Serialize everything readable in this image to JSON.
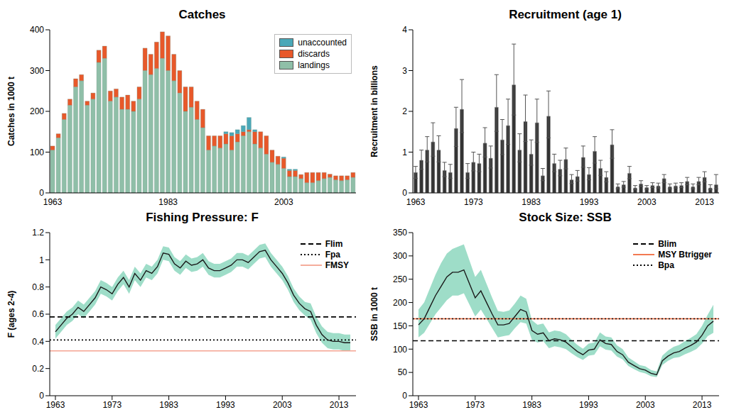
{
  "chart_data": [
    {
      "type": "bar",
      "title": "Catches",
      "stacked": true,
      "legend": "upper right",
      "ylabel": "Catches in 1000 t",
      "categories": [
        "1963",
        null,
        null,
        null,
        null,
        null,
        null,
        null,
        null,
        null,
        null,
        null,
        null,
        null,
        null,
        null,
        null,
        null,
        null,
        null,
        "1983",
        null,
        null,
        null,
        null,
        null,
        null,
        null,
        null,
        null,
        null,
        null,
        null,
        null,
        null,
        null,
        null,
        null,
        null,
        null,
        "2003",
        null,
        null,
        null,
        null,
        null,
        null,
        null,
        null,
        null,
        null,
        null,
        null
      ],
      "series": [
        {
          "name": "landings",
          "color": "#8fbfa8",
          "values": [
            105,
            135,
            180,
            215,
            260,
            275,
            215,
            230,
            320,
            330,
            225,
            235,
            205,
            205,
            200,
            230,
            300,
            290,
            305,
            330,
            300,
            275,
            245,
            200,
            210,
            180,
            160,
            105,
            115,
            110,
            120,
            105,
            125,
            140,
            150,
            120,
            110,
            95,
            75,
            70,
            60,
            40,
            40,
            35,
            25,
            25,
            30,
            35,
            38,
            32,
            30,
            32,
            38
          ]
        },
        {
          "name": "discards",
          "color": "#e8582a",
          "values": [
            10,
            10,
            15,
            15,
            20,
            15,
            10,
            15,
            30,
            30,
            25,
            20,
            30,
            35,
            25,
            30,
            55,
            50,
            65,
            65,
            85,
            65,
            55,
            60,
            50,
            45,
            45,
            35,
            25,
            30,
            25,
            35,
            20,
            10,
            5,
            30,
            40,
            45,
            30,
            20,
            25,
            15,
            15,
            10,
            25,
            25,
            20,
            15,
            8,
            10,
            12,
            10,
            12
          ]
        },
        {
          "name": "unaccounted",
          "color": "#4aa8b8",
          "values": [
            0,
            0,
            0,
            0,
            0,
            0,
            0,
            0,
            0,
            0,
            0,
            0,
            0,
            0,
            0,
            0,
            0,
            0,
            0,
            0,
            0,
            0,
            0,
            0,
            0,
            0,
            0,
            0,
            0,
            0,
            5,
            8,
            10,
            15,
            30,
            5,
            0,
            0,
            0,
            0,
            3,
            3,
            3,
            0,
            0,
            0,
            0,
            0,
            0,
            0,
            0,
            0,
            0
          ]
        }
      ],
      "ylim": [
        0,
        400
      ],
      "yticks": [
        0,
        100,
        200,
        300,
        400
      ]
    },
    {
      "type": "bar",
      "title": "Recruitment (age 1)",
      "ylabel": "Recruitment in billions",
      "color": "#333333",
      "categories": [
        "1963",
        null,
        null,
        null,
        null,
        null,
        null,
        null,
        null,
        null,
        "1973",
        null,
        null,
        null,
        null,
        null,
        null,
        null,
        null,
        null,
        "1983",
        null,
        null,
        null,
        null,
        null,
        null,
        null,
        null,
        null,
        "1993",
        null,
        null,
        null,
        null,
        null,
        null,
        null,
        null,
        null,
        "2003",
        null,
        null,
        null,
        null,
        null,
        null,
        null,
        null,
        null,
        "2013",
        null,
        null
      ],
      "values": [
        0.5,
        0.8,
        1.05,
        1.25,
        1.05,
        0.55,
        0.5,
        1.58,
        2.05,
        0.5,
        0.75,
        0.72,
        1.22,
        0.85,
        2.1,
        1.3,
        1.65,
        2.65,
        1.05,
        1.75,
        0.95,
        1.72,
        0.42,
        1.88,
        0.72,
        0.58,
        0.82,
        0.32,
        0.4,
        0.87,
        0.45,
        1.02,
        0.6,
        0.38,
        1.18,
        0.15,
        0.2,
        0.48,
        0.12,
        0.22,
        0.13,
        0.18,
        0.17,
        0.35,
        0.15,
        0.17,
        0.18,
        0.28,
        0.15,
        0.28,
        0.38,
        0.12,
        0.2
      ],
      "lower": [
        0.36,
        0.58,
        0.76,
        0.9,
        0.76,
        0.4,
        0.36,
        1.14,
        1.48,
        0.36,
        0.54,
        0.52,
        0.88,
        0.61,
        1.51,
        0.94,
        1.19,
        1.91,
        0.76,
        1.26,
        0.68,
        1.24,
        0.3,
        1.35,
        0.52,
        0.42,
        0.59,
        0.23,
        0.29,
        0.63,
        0.32,
        0.73,
        0.43,
        0.27,
        0.85,
        0.1,
        0.14,
        0.35,
        0.08,
        0.16,
        0.09,
        0.13,
        0.12,
        0.25,
        0.1,
        0.12,
        0.13,
        0.2,
        0.1,
        0.2,
        0.27,
        0.08,
        0.1
      ],
      "upper": [
        0.65,
        1.05,
        1.38,
        1.72,
        1.4,
        0.75,
        0.7,
        2.1,
        2.78,
        0.72,
        1.0,
        0.95,
        1.6,
        1.15,
        2.9,
        1.8,
        2.3,
        3.65,
        1.45,
        2.4,
        1.3,
        2.3,
        0.6,
        2.5,
        0.95,
        0.8,
        1.1,
        0.45,
        0.55,
        1.15,
        0.62,
        1.38,
        0.8,
        0.52,
        1.55,
        0.22,
        0.28,
        0.65,
        0.18,
        0.3,
        0.18,
        0.25,
        0.24,
        0.45,
        0.22,
        0.24,
        0.25,
        0.38,
        0.22,
        0.38,
        0.52,
        0.2,
        0.45
      ],
      "ylim": [
        0,
        4
      ],
      "yticks": [
        0,
        1,
        2,
        3,
        4
      ]
    },
    {
      "type": "line",
      "title": "Fishing Pressure: F",
      "ylabel": "F (ages 2-4)",
      "legend": "upper right",
      "x": [
        1963,
        1964,
        1965,
        1966,
        1967,
        1968,
        1969,
        1970,
        1971,
        1972,
        1973,
        1974,
        1975,
        1976,
        1977,
        1978,
        1979,
        1980,
        1981,
        1982,
        1983,
        1984,
        1985,
        1986,
        1987,
        1988,
        1989,
        1990,
        1991,
        1992,
        1993,
        1994,
        1995,
        1996,
        1997,
        1998,
        1999,
        2000,
        2001,
        2002,
        2003,
        2004,
        2005,
        2006,
        2007,
        2008,
        2009,
        2010,
        2011,
        2012,
        2013,
        2014,
        2015
      ],
      "series": [
        {
          "type": "line",
          "color": "#1a1a1a",
          "values": [
            0.47,
            0.52,
            0.57,
            0.6,
            0.65,
            0.62,
            0.67,
            0.72,
            0.8,
            0.78,
            0.75,
            0.82,
            0.87,
            0.8,
            0.9,
            0.85,
            0.92,
            0.9,
            0.95,
            1.05,
            1.04,
            0.97,
            0.94,
            0.99,
            0.96,
            0.97,
            1.0,
            0.94,
            0.92,
            0.92,
            0.94,
            0.96,
            1.0,
            1.0,
            0.98,
            1.02,
            1.06,
            1.07,
            1.0,
            0.95,
            0.9,
            0.83,
            0.74,
            0.68,
            0.64,
            0.62,
            0.52,
            0.45,
            0.41,
            0.4,
            0.4,
            0.39,
            0.39
          ]
        },
        {
          "type": "band",
          "color": "#93d9c2",
          "lower": [
            0.42,
            0.47,
            0.52,
            0.55,
            0.6,
            0.57,
            0.62,
            0.67,
            0.75,
            0.73,
            0.7,
            0.77,
            0.82,
            0.75,
            0.85,
            0.8,
            0.87,
            0.85,
            0.9,
            1.0,
            0.99,
            0.92,
            0.89,
            0.94,
            0.91,
            0.92,
            0.95,
            0.89,
            0.87,
            0.87,
            0.89,
            0.91,
            0.95,
            0.95,
            0.93,
            0.97,
            1.01,
            1.02,
            0.95,
            0.9,
            0.85,
            0.78,
            0.69,
            0.63,
            0.59,
            0.56,
            0.46,
            0.39,
            0.35,
            0.34,
            0.34,
            0.33,
            0.33
          ],
          "upper": [
            0.52,
            0.57,
            0.62,
            0.65,
            0.7,
            0.67,
            0.72,
            0.77,
            0.85,
            0.83,
            0.8,
            0.87,
            0.92,
            0.85,
            0.95,
            0.9,
            0.97,
            0.95,
            1.0,
            1.1,
            1.09,
            1.02,
            0.99,
            1.04,
            1.01,
            1.02,
            1.05,
            0.99,
            0.97,
            0.97,
            0.99,
            1.01,
            1.05,
            1.05,
            1.03,
            1.07,
            1.11,
            1.12,
            1.05,
            1.0,
            0.95,
            0.88,
            0.79,
            0.73,
            0.69,
            0.68,
            0.58,
            0.51,
            0.47,
            0.46,
            0.46,
            0.45,
            0.45
          ]
        }
      ],
      "reference_lines": [
        {
          "name": "Flim",
          "value": 0.58,
          "color": "#000000",
          "line_style": "dashed"
        },
        {
          "name": "Fpa",
          "value": 0.41,
          "color": "#000000",
          "line_style": "dotted"
        },
        {
          "name": "FMSY",
          "value": 0.33,
          "color": "#f4a491",
          "line_style": "solid"
        }
      ],
      "xlim": [
        1962,
        2016
      ],
      "xticks": [
        1963,
        1973,
        1983,
        1993,
        2003,
        2013
      ],
      "ylim": [
        0,
        1.2
      ],
      "yticks": [
        0,
        0.2,
        0.4,
        0.6,
        0.8,
        1,
        1.2
      ]
    },
    {
      "type": "line",
      "title": "Stock Size: SSB",
      "ylabel": "SSB in 1000 t",
      "legend": "upper right",
      "x": [
        1963,
        1964,
        1965,
        1966,
        1967,
        1968,
        1969,
        1970,
        1971,
        1972,
        1973,
        1974,
        1975,
        1976,
        1977,
        1978,
        1979,
        1980,
        1981,
        1982,
        1983,
        1984,
        1985,
        1986,
        1987,
        1988,
        1989,
        1990,
        1991,
        1992,
        1993,
        1994,
        1995,
        1996,
        1997,
        1998,
        1999,
        2000,
        2001,
        2002,
        2003,
        2004,
        2005,
        2006,
        2007,
        2008,
        2009,
        2010,
        2011,
        2012,
        2013,
        2014,
        2015
      ],
      "series": [
        {
          "type": "line",
          "color": "#1a1a1a",
          "values": [
            152,
            165,
            190,
            215,
            235,
            255,
            265,
            265,
            270,
            240,
            210,
            225,
            200,
            175,
            152,
            152,
            155,
            170,
            185,
            180,
            140,
            132,
            135,
            118,
            122,
            120,
            115,
            105,
            95,
            88,
            98,
            100,
            120,
            112,
            110,
            95,
            88,
            72,
            65,
            58,
            55,
            48,
            45,
            75,
            85,
            92,
            95,
            102,
            108,
            115,
            130,
            150,
            160
          ]
        },
        {
          "type": "band",
          "color": "#93d9c2",
          "lower": [
            125,
            135,
            155,
            175,
            190,
            205,
            215,
            215,
            220,
            195,
            170,
            185,
            165,
            145,
            125,
            128,
            130,
            145,
            158,
            155,
            120,
            114,
            117,
            102,
            106,
            104,
            100,
            91,
            83,
            77,
            86,
            88,
            106,
            99,
            97,
            84,
            78,
            64,
            57,
            51,
            48,
            42,
            40,
            66,
            75,
            81,
            83,
            89,
            94,
            100,
            112,
            128,
            135
          ],
          "upper": [
            185,
            200,
            230,
            260,
            285,
            305,
            315,
            320,
            325,
            290,
            255,
            270,
            240,
            210,
            182,
            180,
            183,
            198,
            215,
            208,
            162,
            152,
            155,
            136,
            140,
            138,
            132,
            120,
            109,
            101,
            112,
            114,
            136,
            127,
            125,
            108,
            100,
            82,
            74,
            66,
            63,
            55,
            52,
            86,
            97,
            105,
            109,
            117,
            124,
            132,
            150,
            174,
            195
          ]
        }
      ],
      "reference_lines": [
        {
          "name": "Blim",
          "value": 118,
          "color": "#000000",
          "line_style": "dashed"
        },
        {
          "name": "MSY Btrigger",
          "value": 165,
          "color": "#f26b3f",
          "line_style": "solid"
        },
        {
          "name": "Bpa",
          "value": 165,
          "color": "#000000",
          "line_style": "dotted"
        }
      ],
      "xlim": [
        1962,
        2016
      ],
      "xticks": [
        1963,
        1973,
        1983,
        1993,
        2003,
        2013
      ],
      "ylim": [
        0,
        350
      ],
      "yticks": [
        0,
        50,
        100,
        150,
        200,
        250,
        300,
        350
      ]
    }
  ]
}
